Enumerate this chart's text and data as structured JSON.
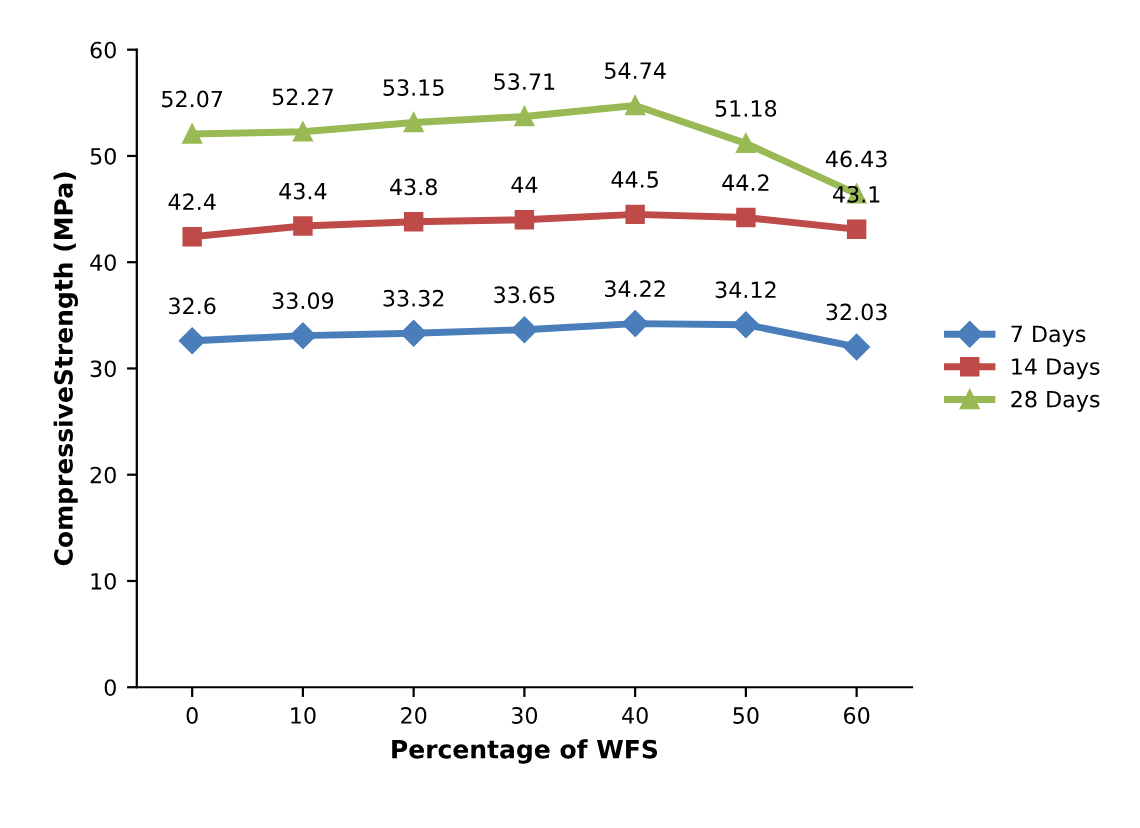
{
  "chart_data": {
    "type": "line",
    "xlabel": "Percentage of WFS",
    "ylabel": "CompressiveStrength (MPa)",
    "categories": [
      "0",
      "10",
      "20",
      "30",
      "40",
      "50",
      "60"
    ],
    "series": [
      {
        "name": "7 Days",
        "color": "#4a7ebb",
        "marker": "diamond",
        "values": [
          32.6,
          33.09,
          33.32,
          33.65,
          34.22,
          34.12,
          32.03
        ]
      },
      {
        "name": "14 Days",
        "color": "#be4b48",
        "marker": "square",
        "values": [
          42.4,
          43.4,
          43.8,
          44,
          44.5,
          44.2,
          43.1
        ]
      },
      {
        "name": "28 Days",
        "color": "#98b954",
        "marker": "triangle",
        "values": [
          52.07,
          52.27,
          53.15,
          53.71,
          54.74,
          51.18,
          46.43
        ]
      }
    ],
    "ylim": [
      0,
      60
    ],
    "yticks": [
      0,
      10,
      20,
      30,
      40,
      50,
      60
    ],
    "grid": false,
    "legend": "right",
    "data_labels": true,
    "line_style": "solid"
  }
}
